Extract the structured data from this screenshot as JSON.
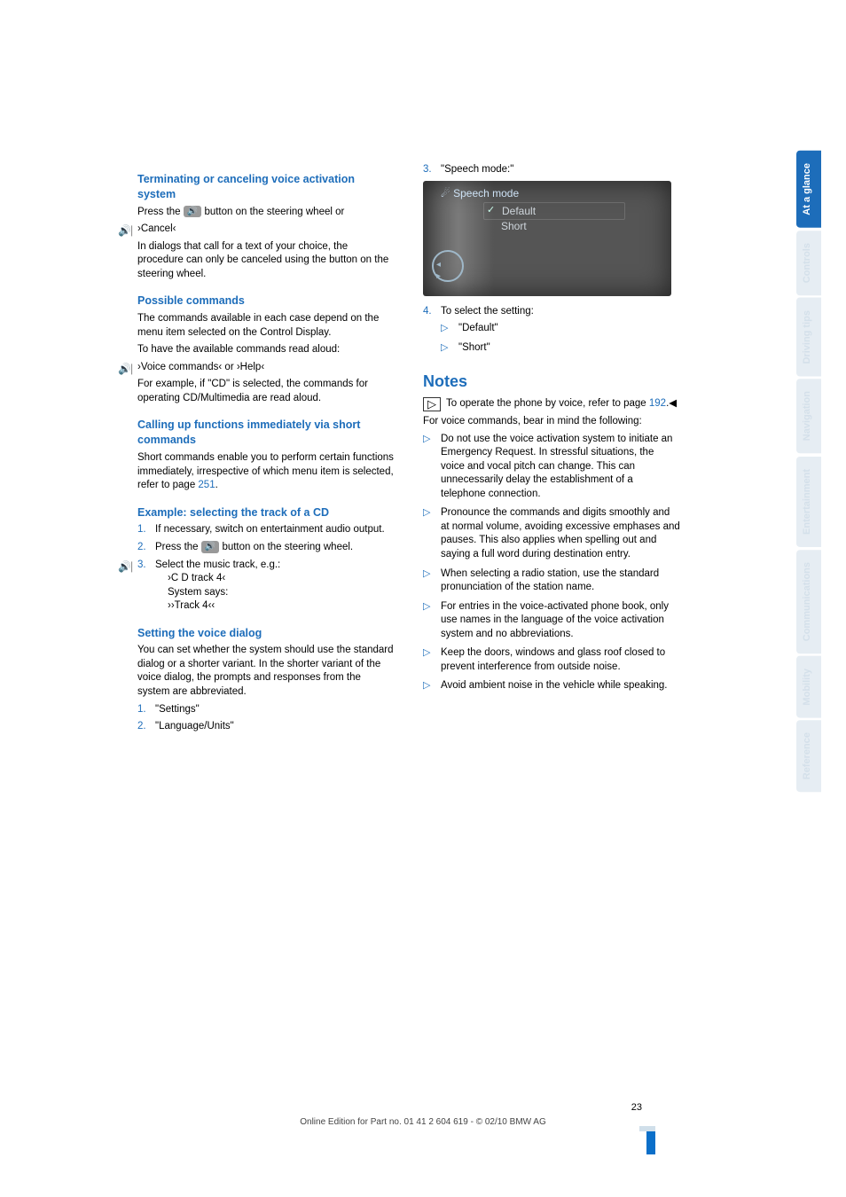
{
  "left": {
    "sec1_title": "Terminating or canceling voice activation system",
    "sec1_p1a": "Press the ",
    "sec1_p1b": " button on the steering wheel or",
    "sec1_cancel": "›Cancel‹",
    "sec1_p2": "In dialogs that call for a text of your choice, the procedure can only be canceled using the button on the steering wheel.",
    "sec2_title": "Possible commands",
    "sec2_p1": "The commands available in each case depend on the menu item selected on the Control Display.",
    "sec2_p2": "To have the available commands read aloud:",
    "sec2_cmd": "›Voice commands‹ or ›Help‹",
    "sec2_p3": "For example, if \"CD\" is selected, the commands for operating CD/Multimedia are read aloud.",
    "sec3_title": "Calling up functions immediately via short commands",
    "sec3_p": "Short commands enable you to perform certain functions immediately, irrespective of which menu item is selected, refer to page ",
    "sec3_page": "251",
    "sec4_title": "Example: selecting the track of a CD",
    "sec4_li1": "If necessary, switch on entertainment audio output.",
    "sec4_li2a": "Press the ",
    "sec4_li2b": " button on the steering wheel.",
    "sec4_li3": "Select the music track, e.g.:",
    "sec4_sub1": "›C D track 4‹",
    "sec4_sub2": "System says:",
    "sec4_sub3": "››Track 4‹‹",
    "sec5_title": "Setting the voice dialog",
    "sec5_p": "You can set whether the system should use the standard dialog or a shorter variant. In the shorter variant of the voice dialog, the prompts and responses from the system are abbreviated.",
    "sec5_li1": "\"Settings\"",
    "sec5_li2": "\"Language/Units\""
  },
  "right": {
    "li3": "\"Speech mode:\"",
    "shot_top": "Speech mode",
    "shot_r1": "Default",
    "shot_r2": "Short",
    "li4": "To select the setting:",
    "li4a": "\"Default\"",
    "li4b": "\"Short\"",
    "notes_title": "Notes",
    "info": "To operate the phone by voice, refer to page ",
    "info_page": "192",
    "info_end": ".◀",
    "p1": "For voice commands, bear in mind the following:",
    "b1": "Do not use the voice activation system to initiate an Emergency Request. In stressful situations, the voice and vocal pitch can change. This can unnecessarily delay the establishment of a telephone connection.",
    "b2": "Pronounce the commands and digits smoothly and at normal volume, avoiding excessive emphases and pauses. This also applies when spelling out and saying a full word during destination entry.",
    "b3": "When selecting a radio station, use the standard pronunciation of the station name.",
    "b4": "For entries in the voice-activated phone book, only use names in the language of the voice activation system and no abbreviations.",
    "b5": "Keep the doors, windows and glass roof closed to prevent interference from outside noise.",
    "b6": "Avoid ambient noise in the vehicle while speaking."
  },
  "tabs": [
    "At a glance",
    "Controls",
    "Driving tips",
    "Navigation",
    "Entertainment",
    "Communications",
    "Mobility",
    "Reference"
  ],
  "active_tab": 0,
  "footer_page": "23",
  "footer_text": "Online Edition for Part no. 01 41 2 604 619 - © 02/10 BMW AG"
}
